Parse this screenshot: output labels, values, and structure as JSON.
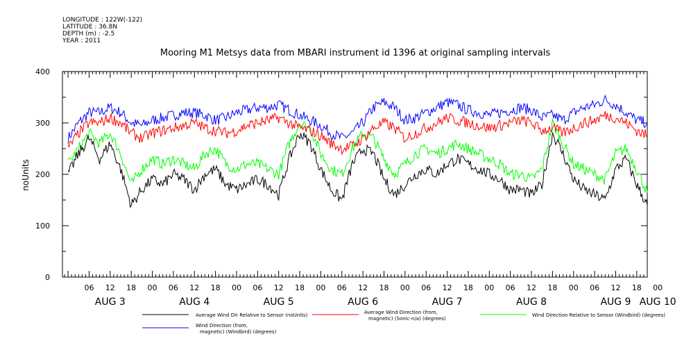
{
  "header": {
    "meta_lines": [
      "LONGITUDE : 122W(-122)",
      "LATITUDE : 36.8N",
      "DEPTH (m) : -2.5",
      "YEAR : 2011"
    ],
    "title": "Mooring M1 Metsys data from MBARI instrument id 1396 at original sampling intervals"
  },
  "chart_data": {
    "type": "line",
    "title": "Mooring M1 Metsys data from MBARI instrument id 1396 at original sampling intervals",
    "ylabel": "noUnits",
    "xlabel": "",
    "ylim": [
      0,
      400
    ],
    "yticks": [
      0,
      100,
      200,
      300,
      400
    ],
    "xlim_hours": [
      -1.6,
      165
    ],
    "x_tick_labels": [
      "06",
      "12",
      "18",
      "00",
      "06",
      "12",
      "18",
      "00",
      "06",
      "12",
      "18",
      "00",
      "06",
      "12",
      "18",
      "00",
      "06",
      "12",
      "18",
      "00",
      "06",
      "12",
      "18",
      "00",
      "06",
      "12",
      "18",
      "00"
    ],
    "x_tick_hours": [
      6,
      12,
      18,
      24,
      30,
      36,
      42,
      48,
      54,
      60,
      66,
      72,
      78,
      84,
      90,
      96,
      102,
      108,
      114,
      120,
      126,
      132,
      138,
      144,
      150,
      156,
      162,
      168
    ],
    "day_labels": [
      {
        "text": "AUG  3",
        "hour": 12
      },
      {
        "text": "AUG  4",
        "hour": 36
      },
      {
        "text": "AUG  5",
        "hour": 60
      },
      {
        "text": "AUG  6",
        "hour": 84
      },
      {
        "text": "AUG  7",
        "hour": 108
      },
      {
        "text": "AUG  8",
        "hour": 132
      },
      {
        "text": "AUG  9",
        "hour": 156
      },
      {
        "text": "AUG 10",
        "hour": 168
      }
    ],
    "x_units_note": "hours from 2011-08-03 00:00",
    "grid": false,
    "legend_position": "bottom",
    "series": [
      {
        "name": "Average Wind Dir Relative to Sensor (noUnits)",
        "color": "#000000",
        "x": [
          0,
          3,
          6,
          9,
          12,
          15,
          18,
          21,
          24,
          27,
          30,
          33,
          36,
          39,
          42,
          45,
          48,
          51,
          54,
          57,
          60,
          63,
          66,
          69,
          72,
          75,
          78,
          81,
          84,
          87,
          90,
          93,
          96,
          99,
          102,
          105,
          108,
          111,
          114,
          117,
          120,
          123,
          126,
          129,
          132,
          135,
          138,
          141,
          144,
          147,
          150,
          153,
          156,
          159,
          162,
          165
        ],
        "values": [
          200,
          240,
          270,
          230,
          260,
          210,
          140,
          170,
          190,
          180,
          200,
          190,
          170,
          200,
          210,
          180,
          170,
          180,
          190,
          180,
          160,
          230,
          280,
          260,
          210,
          170,
          150,
          220,
          250,
          240,
          190,
          160,
          180,
          200,
          210,
          200,
          220,
          230,
          220,
          210,
          200,
          190,
          170,
          170,
          160,
          180,
          280,
          240,
          190,
          170,
          160,
          150,
          210,
          230,
          180,
          140
        ]
      },
      {
        "name": "Average Wind Direction (from, magnetic) (Sonic-n/a) (degrees)",
        "color": "#ff0000",
        "x": [
          0,
          3,
          6,
          9,
          12,
          15,
          18,
          21,
          24,
          27,
          30,
          33,
          36,
          39,
          42,
          45,
          48,
          51,
          54,
          57,
          60,
          63,
          66,
          69,
          72,
          75,
          78,
          81,
          84,
          87,
          90,
          93,
          96,
          99,
          102,
          105,
          108,
          111,
          114,
          117,
          120,
          123,
          126,
          129,
          132,
          135,
          138,
          141,
          144,
          147,
          150,
          153,
          156,
          159,
          162,
          165
        ],
        "values": [
          250,
          280,
          300,
          300,
          310,
          300,
          280,
          270,
          280,
          285,
          290,
          295,
          300,
          290,
          285,
          280,
          285,
          295,
          300,
          305,
          310,
          300,
          290,
          285,
          275,
          260,
          250,
          255,
          270,
          290,
          300,
          290,
          270,
          280,
          290,
          300,
          310,
          305,
          300,
          295,
          290,
          295,
          300,
          305,
          300,
          285,
          290,
          280,
          290,
          300,
          305,
          315,
          310,
          300,
          285,
          275
        ]
      },
      {
        "name": "Wind Direction Relative to Sensor (Windbird) (degrees)",
        "color": "#00ff00",
        "x": [
          0,
          3,
          6,
          9,
          12,
          15,
          18,
          21,
          24,
          27,
          30,
          33,
          36,
          39,
          42,
          45,
          48,
          51,
          54,
          57,
          60,
          63,
          66,
          69,
          72,
          75,
          78,
          81,
          84,
          87,
          90,
          93,
          96,
          99,
          102,
          105,
          108,
          111,
          114,
          117,
          120,
          123,
          126,
          129,
          132,
          135,
          138,
          141,
          144,
          147,
          150,
          153,
          156,
          159,
          162,
          165
        ],
        "values": [
          220,
          250,
          280,
          260,
          280,
          240,
          180,
          210,
          230,
          220,
          230,
          220,
          210,
          240,
          250,
          220,
          210,
          220,
          220,
          210,
          200,
          260,
          300,
          290,
          240,
          210,
          200,
          250,
          280,
          270,
          230,
          200,
          220,
          240,
          250,
          240,
          250,
          260,
          250,
          240,
          230,
          220,
          200,
          200,
          190,
          210,
          300,
          260,
          220,
          210,
          200,
          190,
          240,
          250,
          210,
          165
        ]
      },
      {
        "name": "Wind Direction (from, magnetic) (Windbird) (degrees)",
        "color": "#0000ff",
        "x": [
          0,
          3,
          6,
          9,
          12,
          15,
          18,
          21,
          24,
          27,
          30,
          33,
          36,
          39,
          42,
          45,
          48,
          51,
          54,
          57,
          60,
          63,
          66,
          69,
          72,
          75,
          78,
          81,
          84,
          87,
          90,
          93,
          96,
          99,
          102,
          105,
          108,
          111,
          114,
          117,
          120,
          123,
          126,
          129,
          132,
          135,
          138,
          141,
          144,
          147,
          150,
          153,
          156,
          159,
          162,
          165
        ],
        "values": [
          270,
          300,
          320,
          320,
          330,
          320,
          300,
          295,
          305,
          310,
          315,
          320,
          320,
          315,
          305,
          310,
          320,
          325,
          330,
          330,
          335,
          325,
          315,
          305,
          295,
          280,
          270,
          280,
          300,
          330,
          340,
          330,
          305,
          310,
          320,
          330,
          340,
          335,
          325,
          320,
          315,
          320,
          325,
          330,
          325,
          310,
          315,
          305,
          320,
          330,
          335,
          345,
          335,
          320,
          305,
          300
        ]
      }
    ]
  },
  "legend": {
    "items": [
      {
        "line1": "Average Wind Dir Relative to Sensor (noUnits)",
        "line2": "",
        "color": "#000000"
      },
      {
        "line1": "Average Wind Direction (from,",
        "line2": "magnetic) (Sonic-n/a) (degrees)",
        "color": "#ff0000"
      },
      {
        "line1": "Wind Direction Relative to Sensor (Windbird) (degrees)",
        "line2": "",
        "color": "#00ff00"
      },
      {
        "line1": "Wind Direction (from,",
        "line2": "magnetic) (Windbird) (degrees)",
        "color": "#0000ff"
      }
    ]
  }
}
